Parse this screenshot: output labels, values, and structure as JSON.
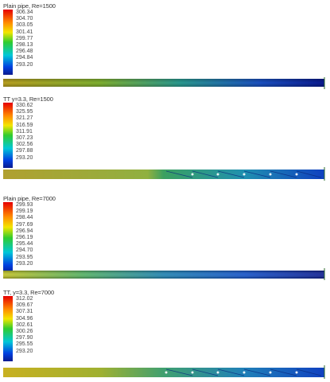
{
  "panels": [
    {
      "title": "Plain pipe, Re=1500",
      "legend": [
        "306.34",
        "304.70",
        "303.05",
        "301.41",
        "299.77",
        "298.13",
        "296.48",
        "294.84",
        "293.20"
      ]
    },
    {
      "title": "TT y=3.3, Re=1500",
      "legend": [
        "330.62",
        "325.95",
        "321.27",
        "316.59",
        "311.91",
        "307.23",
        "302.56",
        "297.88",
        "293.20"
      ]
    },
    {
      "title": "Plain pipe, Re=7000",
      "legend": [
        "299.93",
        "299.19",
        "298.44",
        "297.69",
        "296.94",
        "296.19",
        "295.44",
        "294.70",
        "293.95",
        "293.20"
      ]
    },
    {
      "title": "TT, y=3.3, Re=7000",
      "legend": [
        "312.02",
        "309.67",
        "307.31",
        "304.96",
        "302.61",
        "300.26",
        "297.90",
        "295.55",
        "293.20"
      ]
    }
  ],
  "colors": {
    "red": "#e60000",
    "orange": "#ff8a00",
    "yellow": "#f3e600",
    "green": "#2fcc2f",
    "cyan": "#00c8d8",
    "blue": "#0040e0",
    "navy": "#0a1a90"
  }
}
